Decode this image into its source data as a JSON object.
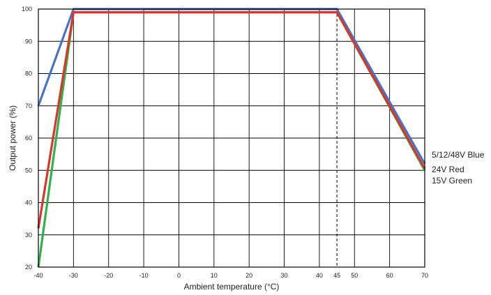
{
  "chart_data": {
    "type": "line",
    "xlabel": "Ambient temperature (°C)",
    "ylabel": "Output power (%)",
    "xlim": [
      -40,
      70
    ],
    "ylim": [
      20,
      100
    ],
    "x_ticks": [
      -40,
      -30,
      -20,
      -10,
      0,
      10,
      20,
      30,
      40,
      45,
      50,
      60,
      70
    ],
    "x_ticks_labeled": [
      "-40",
      "-30",
      "-20",
      "-10",
      "0",
      "10",
      "20",
      "30",
      "40",
      "45",
      "50",
      "60",
      "70"
    ],
    "y_ticks": [
      20,
      30,
      40,
      50,
      60,
      70,
      80,
      90,
      100
    ],
    "y_ticks_labeled": [
      "20",
      "30",
      "40",
      "50",
      "60",
      "70",
      "80",
      "90",
      "100"
    ],
    "grid": true,
    "reference_line_x": 45,
    "legend_position": "right",
    "series": [
      {
        "name": "15V Green",
        "label": "15V Green",
        "color": "#2db34a",
        "x": [
          -40,
          -30,
          45,
          70
        ],
        "y": [
          20,
          99,
          99,
          50
        ]
      },
      {
        "name": "24V Red",
        "label": "24V Red",
        "color": "#d9352b",
        "x": [
          -40,
          -30,
          45,
          70
        ],
        "y": [
          32,
          99,
          99,
          50.5
        ]
      },
      {
        "name": "5/12/48V Blue",
        "label": "5/12/48V Blue",
        "color": "#4a72c4",
        "x": [
          -40,
          -30,
          45,
          70
        ],
        "y": [
          70,
          100,
          100,
          52
        ]
      }
    ],
    "draw_order": [
      "5/12/48V Blue",
      "15V Green",
      "24V Red"
    ],
    "legend_order": [
      "5/12/48V Blue",
      "24V Red",
      "15V Green"
    ]
  }
}
